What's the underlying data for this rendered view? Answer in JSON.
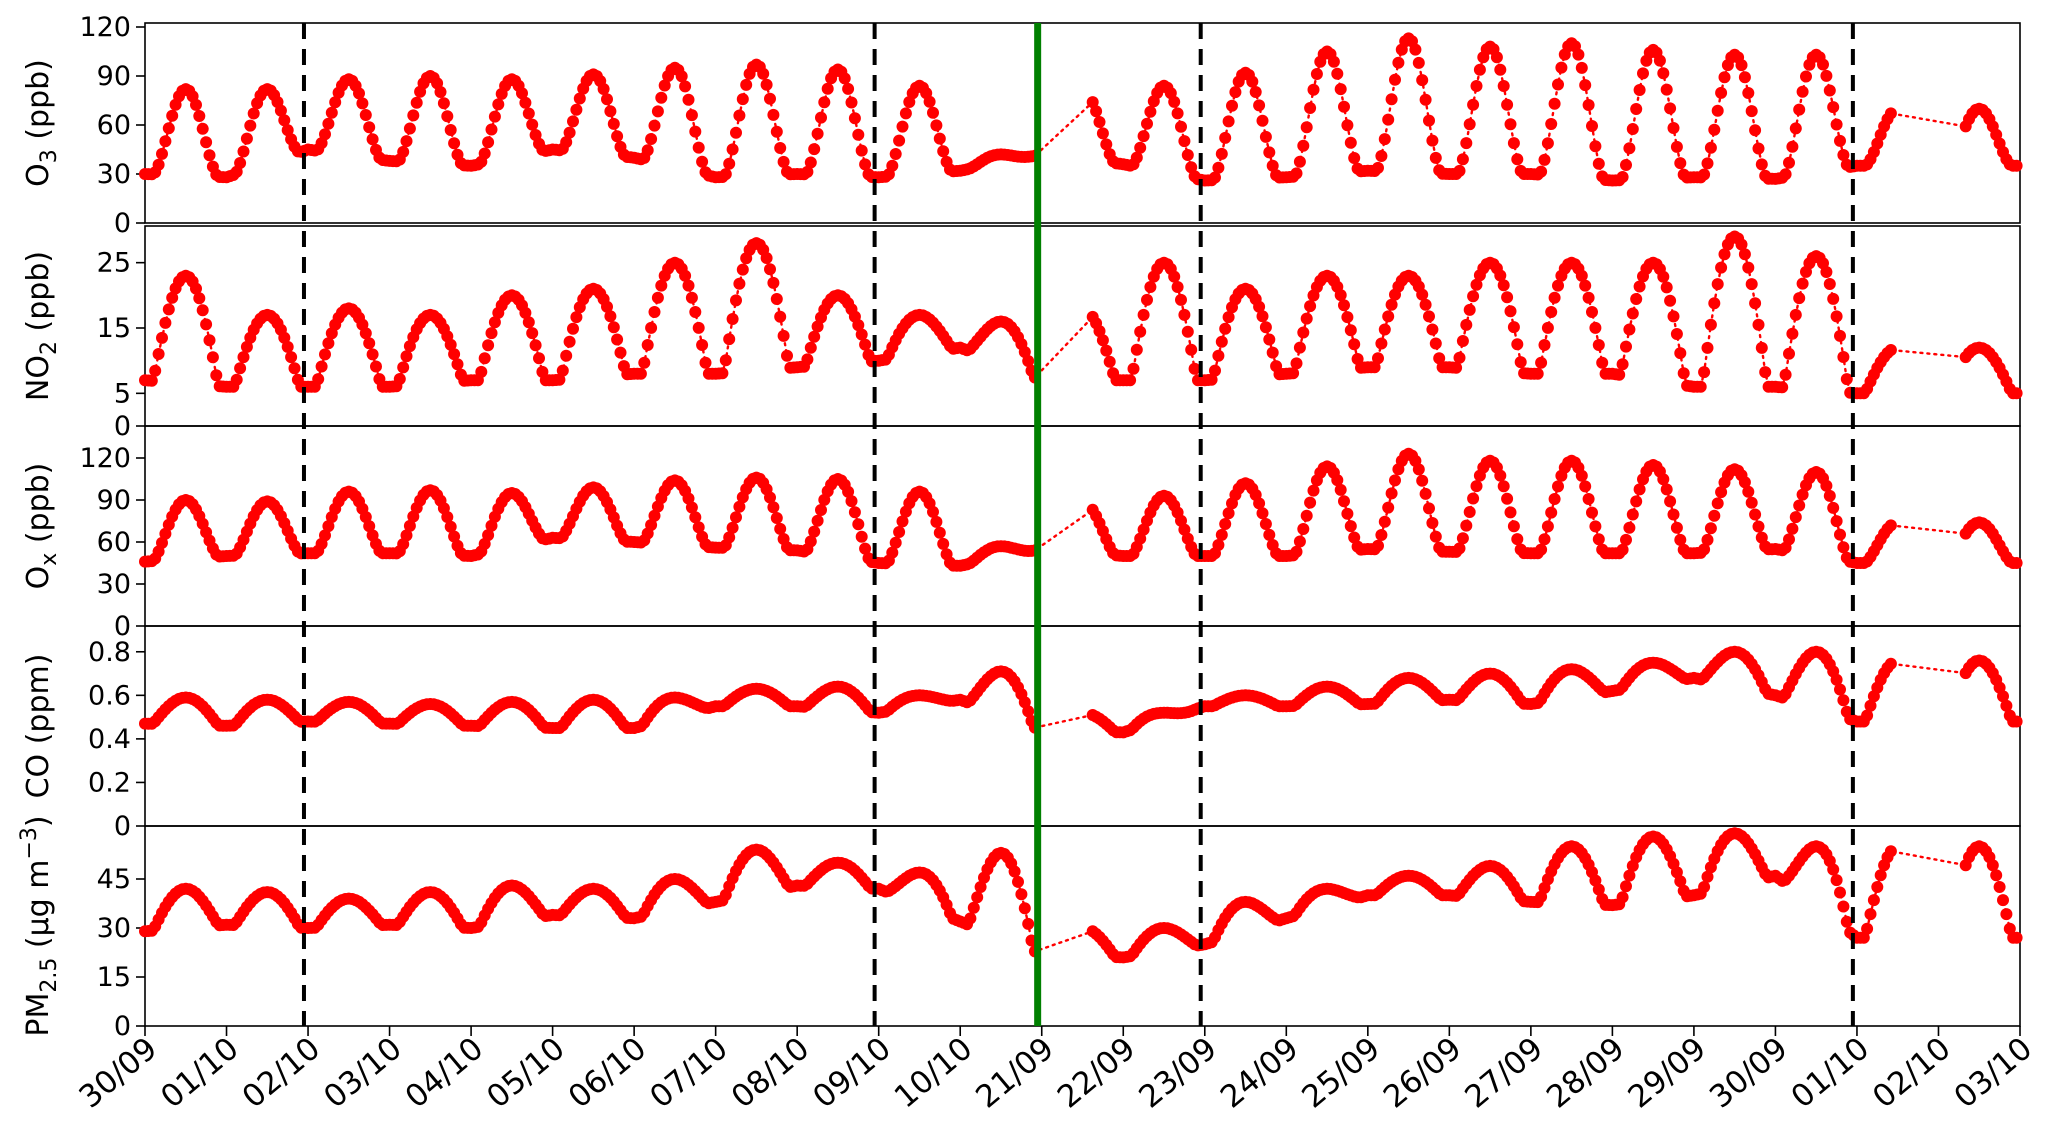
{
  "colors": {
    "series": "#ff0000",
    "event_line": "#008000",
    "divider_line": "#000000"
  },
  "chart_data": {
    "type": "scatter",
    "style": "red dots joined by dotted red line",
    "x_unit": "day index (0 = 30/09 of first period)",
    "x_range": [
      0,
      23
    ],
    "x_tick_labels": [
      "30/09",
      "01/10",
      "02/10",
      "03/10",
      "04/10",
      "05/10",
      "06/10",
      "07/10",
      "08/10",
      "09/10",
      "10/10",
      "21/09",
      "22/09",
      "23/09",
      "24/09",
      "25/09",
      "26/09",
      "27/09",
      "28/09",
      "29/09",
      "30/09",
      "01/10",
      "02/10",
      "03/10"
    ],
    "vertical_lines": [
      {
        "x": 1.95,
        "style": "dashed",
        "color": "black"
      },
      {
        "x": 8.95,
        "style": "dashed",
        "color": "black"
      },
      {
        "x": 10.95,
        "style": "solid",
        "color": "green"
      },
      {
        "x": 12.95,
        "style": "dashed",
        "color": "black"
      },
      {
        "x": 20.95,
        "style": "dashed",
        "color": "black"
      }
    ],
    "gaps": [
      [
        10.95,
        11.6
      ],
      [
        21.45,
        22.3
      ]
    ],
    "panels": [
      {
        "ylabel_main": "O",
        "ylabel_sub": "3",
        "ylabel_rest": " (ppb)",
        "ylim": [
          0,
          120
        ],
        "yticks": [
          "0",
          "30",
          "60",
          "90",
          "120"
        ],
        "ytick_values": [
          0,
          30,
          60,
          90,
          120
        ],
        "baseline": 30,
        "amplitude": 52,
        "peak_shape": 1.6,
        "peaks": [
          82,
          82,
          88,
          90,
          88,
          91,
          95,
          97,
          94,
          84,
          42,
          82,
          84,
          92,
          105,
          113,
          108,
          110,
          106,
          103,
          103,
          70
        ],
        "troughs": [
          30,
          28,
          45,
          38,
          35,
          45,
          40,
          28,
          30,
          28,
          32,
          42,
          36,
          26,
          28,
          32,
          30,
          30,
          26,
          28,
          27,
          35
        ]
      },
      {
        "ylabel_main": "NO",
        "ylabel_sub": "2",
        "ylabel_rest": " (ppb)",
        "ylim": [
          0,
          30
        ],
        "yticks": [
          "0",
          "5",
          "15",
          "25"
        ],
        "ytick_values": [
          0,
          5,
          15,
          25
        ],
        "baseline": 15,
        "amplitude": 8,
        "peak_shape": 1.0,
        "peaks": [
          23,
          17,
          18,
          17,
          20,
          21,
          25,
          28,
          20,
          17,
          16,
          18,
          25,
          21,
          23,
          23,
          25,
          25,
          25,
          29,
          26,
          12
        ],
        "troughs": [
          7,
          6,
          6,
          6,
          7,
          7,
          8,
          8,
          9,
          10,
          12,
          7,
          7,
          7,
          8,
          9,
          9,
          8,
          8,
          6,
          6,
          5
        ]
      },
      {
        "ylabel_main": "O",
        "ylabel_sub": "x",
        "ylabel_rest": " (ppb)",
        "ylim": [
          0,
          140
        ],
        "yticks": [
          "0",
          "30",
          "60",
          "90",
          "120"
        ],
        "ytick_values": [
          0,
          30,
          60,
          90,
          120
        ],
        "baseline": 50,
        "amplitude": 40,
        "peak_shape": 1.4,
        "peaks": [
          90,
          89,
          96,
          97,
          95,
          99,
          104,
          106,
          105,
          96,
          57,
          89,
          93,
          102,
          114,
          123,
          118,
          118,
          115,
          112,
          110,
          74
        ],
        "troughs": [
          46,
          50,
          52,
          52,
          50,
          63,
          60,
          56,
          54,
          45,
          43,
          55,
          50,
          50,
          50,
          55,
          53,
          52,
          52,
          52,
          55,
          45
        ]
      },
      {
        "ylabel_main": "CO",
        "ylabel_sub": "",
        "ylabel_rest": " (ppm)",
        "ylim": [
          0,
          0.9
        ],
        "yticks": [
          "0",
          "0.2",
          "0.4",
          "0.6",
          "0.8"
        ],
        "ytick_values": [
          0,
          0.2,
          0.4,
          0.6,
          0.8
        ],
        "baseline": 0.5,
        "amplitude": 0.1,
        "peak_shape": 1.0,
        "peaks": [
          0.59,
          0.58,
          0.57,
          0.56,
          0.57,
          0.58,
          0.59,
          0.63,
          0.64,
          0.6,
          0.71,
          0.52,
          0.52,
          0.6,
          0.64,
          0.68,
          0.7,
          0.72,
          0.75,
          0.8,
          0.8,
          0.76
        ],
        "troughs": [
          0.47,
          0.46,
          0.48,
          0.47,
          0.46,
          0.45,
          0.45,
          0.55,
          0.55,
          0.52,
          0.58,
          0.44,
          0.43,
          0.55,
          0.55,
          0.56,
          0.58,
          0.56,
          0.62,
          0.68,
          0.6,
          0.48
        ]
      },
      {
        "ylabel_main": "PM",
        "ylabel_sub": "2.5",
        "ylabel_rest": " (µg m",
        "ylabel_sup": "−3",
        "ylabel_end": ")",
        "ylim": [
          0,
          60
        ],
        "yticks": [
          "0",
          "15",
          "30",
          "45"
        ],
        "ytick_values": [
          0,
          15,
          30,
          45
        ],
        "baseline": 35,
        "amplitude": 8,
        "peak_shape": 1.0,
        "peaks": [
          42,
          41,
          39,
          41,
          43,
          42,
          45,
          54,
          50,
          47,
          53,
          30,
          30,
          38,
          42,
          46,
          49,
          55,
          58,
          59,
          55,
          55
        ],
        "troughs": [
          29,
          31,
          30,
          31,
          30,
          34,
          33,
          38,
          43,
          42,
          32,
          22,
          21,
          25,
          33,
          40,
          40,
          38,
          37,
          40,
          46,
          27
        ]
      }
    ]
  }
}
